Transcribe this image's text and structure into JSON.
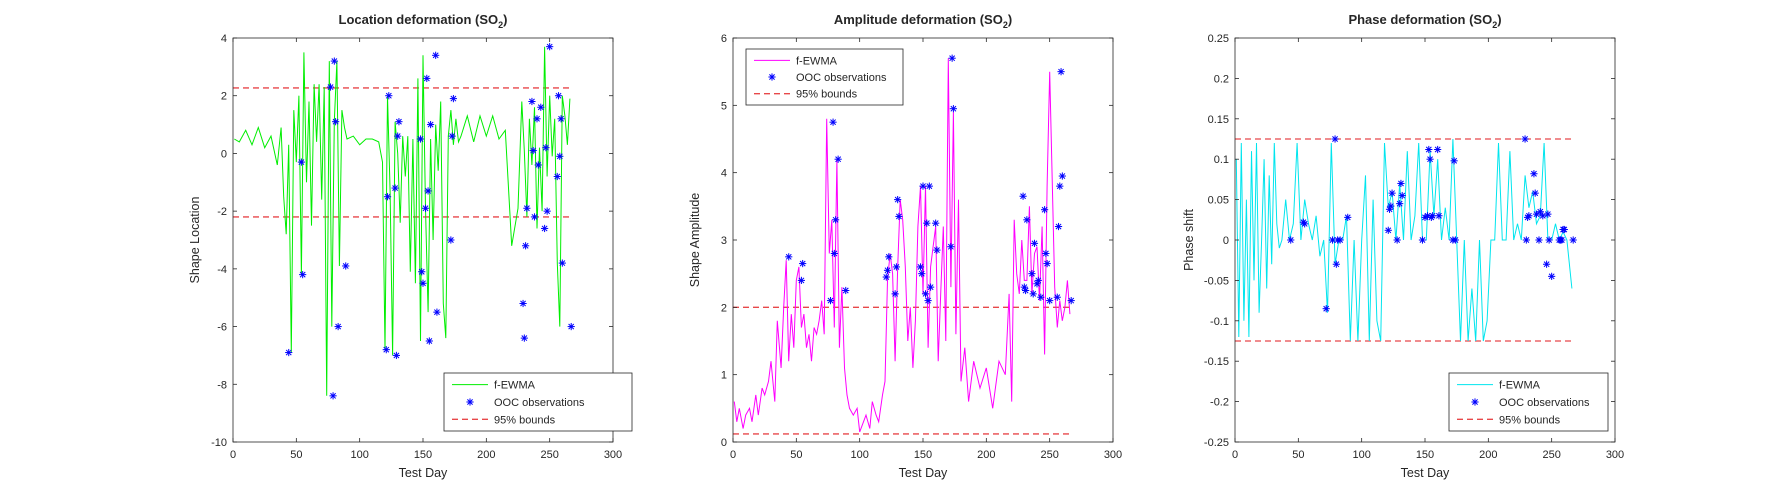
{
  "colors": {
    "location": "#00ee00",
    "amplitude": "#ff00ff",
    "phase": "#00e5ee",
    "ooc": "#0000ff",
    "bounds": "#e8474a"
  },
  "chart_data": [
    {
      "type": "line",
      "id": "location",
      "title": "Location deformation (SO",
      "title_subscript": "2",
      "title_close": ")",
      "xlabel": "Test Day",
      "ylabel": "Shape Location",
      "xlim": [
        0,
        300
      ],
      "ylim": [
        -10,
        4
      ],
      "xticks": [
        "0",
        "50",
        "100",
        "150",
        "200",
        "250",
        "300"
      ],
      "yticks": [
        "-10",
        "-8",
        "-6",
        "-4",
        "-2",
        "0",
        "2",
        "4"
      ],
      "series": [
        {
          "name": "f-EWMA",
          "style": "line",
          "x": [
            1,
            5,
            10,
            15,
            20,
            25,
            30,
            35,
            38,
            40,
            42,
            44,
            46,
            48,
            50,
            52,
            54,
            56,
            58,
            60,
            62,
            64,
            66,
            68,
            70,
            72,
            74,
            76,
            78,
            80,
            82,
            84,
            86,
            88,
            90,
            95,
            100,
            105,
            110,
            115,
            118,
            120,
            122,
            124,
            126,
            128,
            130,
            132,
            134,
            136,
            138,
            140,
            142,
            144,
            146,
            148,
            150,
            152,
            154,
            156,
            158,
            160,
            162,
            164,
            166,
            168,
            170,
            172,
            174,
            176,
            178,
            180,
            185,
            190,
            195,
            200,
            205,
            210,
            215,
            220,
            225,
            228,
            230,
            232,
            234,
            236,
            238,
            240,
            242,
            244,
            246,
            248,
            250,
            252,
            254,
            256,
            258,
            260,
            262,
            264,
            266
          ],
          "values": [
            0.5,
            0.4,
            0.8,
            0.3,
            0.9,
            0.2,
            0.6,
            -0.4,
            0.9,
            -1.5,
            -2.8,
            0.3,
            -6.9,
            1.5,
            -0.3,
            2.0,
            -4.2,
            3.5,
            -1.0,
            1.8,
            -2.5,
            2.4,
            0.4,
            2.4,
            -1.6,
            2.3,
            -8.4,
            3.2,
            -6.0,
            1.1,
            3.2,
            -3.9,
            1.5,
            0.9,
            0.5,
            0.6,
            0.3,
            0.5,
            0.5,
            0.4,
            -0.3,
            -6.8,
            2.0,
            -1.3,
            -7.0,
            1.1,
            0.0,
            -2.4,
            0.6,
            -0.8,
            0.6,
            -4.1,
            0.5,
            -4.5,
            2.6,
            -6.5,
            3.4,
            -1.9,
            -5.5,
            0.5,
            -3.0,
            1.0,
            -0.6,
            1.8,
            -5.2,
            -6.4,
            0.6,
            1.5,
            0.3,
            1.2,
            0.4,
            0.6,
            1.3,
            0.4,
            1.3,
            0.6,
            1.3,
            0.5,
            0.8,
            -3.2,
            -1.9,
            1.8,
            0.1,
            -2.2,
            1.2,
            -0.4,
            1.6,
            -2.6,
            0.2,
            -2.0,
            3.7,
            -0.8,
            2.0,
            -0.1,
            1.2,
            -3.8,
            -6.0,
            2.0,
            1.3,
            0.3,
            1.9
          ]
        },
        {
          "name": "OOC observations",
          "style": "marker",
          "x": [
            44,
            54,
            55,
            77,
            79,
            80,
            81,
            83,
            89,
            121,
            122,
            123,
            128,
            129,
            130,
            131,
            148,
            149,
            150,
            152,
            153,
            154,
            155,
            156,
            160,
            161,
            172,
            173,
            174,
            229,
            230,
            231,
            232,
            236,
            237,
            238,
            240,
            241,
            243,
            246,
            247,
            248,
            250,
            256,
            257,
            258,
            259,
            260,
            267
          ],
          "values": [
            -6.9,
            -0.3,
            -4.2,
            2.3,
            -8.4,
            3.2,
            1.1,
            -6.0,
            -3.9,
            -6.8,
            -1.5,
            2.0,
            -1.2,
            -7.0,
            0.6,
            1.1,
            0.5,
            -4.1,
            -4.5,
            -1.9,
            2.6,
            -1.3,
            -6.5,
            1.0,
            3.4,
            -5.5,
            -3.0,
            0.6,
            1.9,
            -5.2,
            -6.4,
            -3.2,
            -1.9,
            1.8,
            0.1,
            -2.2,
            1.2,
            -0.4,
            1.6,
            -2.6,
            0.2,
            -2.0,
            3.7,
            -0.8,
            2.0,
            -0.1,
            1.2,
            -3.8,
            -6.0
          ]
        },
        {
          "name": "95% bounds",
          "style": "dashed",
          "x": [
            0,
            266
          ],
          "upper": 2.27,
          "lower": -2.2
        }
      ],
      "legend": "bottom-right"
    },
    {
      "type": "line",
      "id": "amplitude",
      "title": "Amplitude deformation (SO",
      "title_subscript": "2",
      "title_close": ")",
      "xlabel": "Test Day",
      "ylabel": "Shape Amplitude",
      "xlim": [
        0,
        300
      ],
      "ylim": [
        0,
        6
      ],
      "xticks": [
        "0",
        "50",
        "100",
        "150",
        "200",
        "250",
        "300"
      ],
      "yticks": [
        "0",
        "1",
        "2",
        "3",
        "4",
        "5",
        "6"
      ],
      "series": [
        {
          "name": "f-EWMA",
          "style": "line",
          "x": [
            1,
            3,
            5,
            8,
            10,
            13,
            15,
            18,
            20,
            23,
            25,
            28,
            30,
            33,
            35,
            38,
            40,
            42,
            44,
            46,
            48,
            50,
            52,
            54,
            56,
            58,
            60,
            62,
            64,
            66,
            68,
            70,
            72,
            74,
            76,
            78,
            80,
            82,
            84,
            86,
            88,
            90,
            92,
            95,
            98,
            100,
            103,
            105,
            108,
            110,
            113,
            115,
            118,
            120,
            122,
            124,
            126,
            128,
            130,
            132,
            134,
            136,
            138,
            140,
            142,
            144,
            146,
            148,
            150,
            152,
            154,
            156,
            158,
            160,
            162,
            164,
            166,
            168,
            170,
            172,
            174,
            176,
            178,
            180,
            183,
            186,
            190,
            195,
            200,
            205,
            210,
            215,
            218,
            220,
            222,
            224,
            226,
            228,
            230,
            232,
            234,
            236,
            238,
            240,
            242,
            244,
            246,
            248,
            250,
            252,
            254,
            256,
            258,
            260,
            262,
            264,
            266
          ],
          "values": [
            0.6,
            0.3,
            0.5,
            0.2,
            0.4,
            0.5,
            0.3,
            0.7,
            0.4,
            0.8,
            0.7,
            0.9,
            1.2,
            0.6,
            1.8,
            1.1,
            2.0,
            2.7,
            1.2,
            1.9,
            1.4,
            2.4,
            2.6,
            1.7,
            1.9,
            1.4,
            1.6,
            1.2,
            1.7,
            1.6,
            1.8,
            2.1,
            1.6,
            4.8,
            2.8,
            3.3,
            1.7,
            4.2,
            1.4,
            2.3,
            1.1,
            0.7,
            0.5,
            0.4,
            0.5,
            0.15,
            0.3,
            0.4,
            0.2,
            0.6,
            0.4,
            0.3,
            0.7,
            0.9,
            2.4,
            2.8,
            2.5,
            1.2,
            2.6,
            3.6,
            3.3,
            2.6,
            1.5,
            2.0,
            1.1,
            1.8,
            3.2,
            3.8,
            2.2,
            3.8,
            1.4,
            2.6,
            2.9,
            3.2,
            1.2,
            2.2,
            3.2,
            1.5,
            5.7,
            2.3,
            4.9,
            1.6,
            3.6,
            0.9,
            1.4,
            0.6,
            1.2,
            0.8,
            1.1,
            0.5,
            1.2,
            1.0,
            2.2,
            0.6,
            3.3,
            2.5,
            2.2,
            3.0,
            2.4,
            2.4,
            3.5,
            2.2,
            2.8,
            2.9,
            2.1,
            3.2,
            1.3,
            3.8,
            5.5,
            3.9,
            2.3,
            1.7,
            2.1,
            1.8,
            2.0,
            2.4,
            1.9
          ]
        },
        {
          "name": "OOC observations",
          "style": "marker",
          "x": [
            44,
            54,
            55,
            77,
            79,
            80,
            81,
            83,
            89,
            121,
            122,
            123,
            128,
            129,
            130,
            131,
            148,
            149,
            150,
            152,
            153,
            154,
            155,
            156,
            160,
            161,
            172,
            173,
            174,
            229,
            230,
            231,
            232,
            236,
            237,
            238,
            240,
            241,
            243,
            246,
            247,
            248,
            250,
            256,
            257,
            258,
            259,
            260,
            267
          ],
          "values": [
            2.75,
            2.4,
            2.65,
            2.1,
            4.75,
            2.8,
            3.3,
            4.2,
            2.25,
            2.45,
            2.55,
            2.75,
            2.2,
            2.6,
            3.6,
            3.35,
            2.6,
            2.5,
            3.8,
            2.2,
            3.25,
            2.1,
            3.8,
            2.3,
            3.25,
            2.85,
            2.9,
            5.7,
            4.95,
            3.65,
            2.3,
            2.25,
            3.3,
            2.5,
            2.2,
            2.95,
            2.35,
            2.4,
            2.15,
            3.45,
            2.8,
            2.65,
            2.1,
            2.15,
            3.2,
            3.8,
            5.5,
            3.95,
            2.1
          ]
        },
        {
          "name": "95% bounds",
          "style": "dashed",
          "x": [
            0,
            266
          ],
          "upper": 2.0,
          "lower": 0.12
        }
      ],
      "legend": "top-left"
    },
    {
      "type": "line",
      "id": "phase",
      "title": "Phase deformation (SO",
      "title_subscript": "2",
      "title_close": ")",
      "xlabel": "Test Day",
      "ylabel": "Phase shift",
      "xlim": [
        0,
        300
      ],
      "ylim": [
        -0.25,
        0.25
      ],
      "xticks": [
        "0",
        "50",
        "100",
        "150",
        "200",
        "250",
        "300"
      ],
      "yticks": [
        "-0.25",
        "-0.2",
        "-0.15",
        "-0.1",
        "-0.05",
        "0",
        "0.05",
        "0.1",
        "0.15",
        "0.2",
        "0.25"
      ],
      "series": [
        {
          "name": "f-EWMA",
          "style": "line",
          "x": [
            1,
            3,
            5,
            7,
            9,
            11,
            13,
            15,
            17,
            19,
            21,
            23,
            25,
            27,
            29,
            31,
            33,
            35,
            37,
            40,
            43,
            46,
            49,
            52,
            55,
            58,
            61,
            64,
            67,
            70,
            73,
            76,
            79,
            82,
            85,
            88,
            91,
            94,
            97,
            100,
            103,
            106,
            109,
            112,
            115,
            118,
            121,
            124,
            127,
            130,
            133,
            136,
            139,
            142,
            145,
            148,
            151,
            154,
            157,
            160,
            163,
            166,
            169,
            172,
            175,
            178,
            181,
            184,
            187,
            190,
            193,
            196,
            199,
            202,
            205,
            208,
            211,
            214,
            217,
            220,
            223,
            226,
            229,
            232,
            235,
            238,
            241,
            244,
            247,
            250,
            253,
            256,
            259,
            262,
            266
          ],
          "values": [
            0.1,
            -0.12,
            0.12,
            -0.1,
            0.05,
            -0.12,
            0.11,
            -0.05,
            0.12,
            -0.09,
            0.0,
            0.1,
            -0.06,
            0.08,
            -0.03,
            0.12,
            0.02,
            -0.01,
            0.0,
            0.05,
            0.0,
            0.02,
            0.12,
            0.0,
            0.05,
            0.02,
            0.0,
            0.03,
            -0.02,
            0.0,
            -0.09,
            0.12,
            -0.03,
            0.0,
            0.0,
            0.03,
            -0.125,
            0.0,
            -0.125,
            0.0,
            0.08,
            -0.125,
            0.05,
            -0.1,
            -0.125,
            0.12,
            0.04,
            0.06,
            0.0,
            0.07,
            0.0,
            0.11,
            0.0,
            0.03,
            0.12,
            0.0,
            0.0,
            0.11,
            0.03,
            0.1,
            0.0,
            0.04,
            0.0,
            0.125,
            0.0,
            -0.125,
            0.0,
            -0.125,
            -0.06,
            -0.125,
            0.0,
            -0.125,
            -0.1,
            0.0,
            0.0,
            0.12,
            0.0,
            0.0,
            0.11,
            0.0,
            0.02,
            0.0,
            0.08,
            0.04,
            0.06,
            0.02,
            0.03,
            0.12,
            0.0,
            0.0,
            0.02,
            0.0,
            0.01,
            0.0,
            -0.06
          ]
        },
        {
          "name": "OOC observations",
          "style": "marker",
          "x": [
            44,
            54,
            55,
            72,
            77,
            79,
            80,
            81,
            83,
            89,
            121,
            122,
            123,
            124,
            128,
            130,
            131,
            132,
            148,
            150,
            152,
            153,
            154,
            155,
            156,
            160,
            161,
            172,
            173,
            174,
            229,
            230,
            231,
            232,
            236,
            237,
            238,
            240,
            241,
            243,
            246,
            247,
            248,
            250,
            256,
            257,
            258,
            259,
            260,
            267
          ],
          "values": [
            0.0,
            0.022,
            0.02,
            -0.085,
            0.0,
            0.125,
            -0.03,
            0.0,
            0.0,
            0.028,
            0.012,
            0.038,
            0.042,
            0.058,
            0.0,
            0.045,
            0.07,
            0.055,
            0.0,
            0.028,
            0.03,
            0.112,
            0.1,
            0.028,
            0.03,
            0.112,
            0.03,
            0.0,
            0.098,
            0.0,
            0.125,
            0.0,
            0.028,
            0.03,
            0.082,
            0.058,
            0.032,
            0.0,
            0.035,
            0.03,
            -0.03,
            0.032,
            0.0,
            -0.045,
            0.0,
            0.0,
            0.0,
            0.013,
            0.013,
            0.0
          ],
          "comment": ""
        },
        {
          "name": "95% bounds",
          "style": "dashed",
          "x": [
            0,
            266
          ],
          "upper": 0.125,
          "lower": -0.125
        }
      ],
      "legend": "bottom-right"
    }
  ]
}
